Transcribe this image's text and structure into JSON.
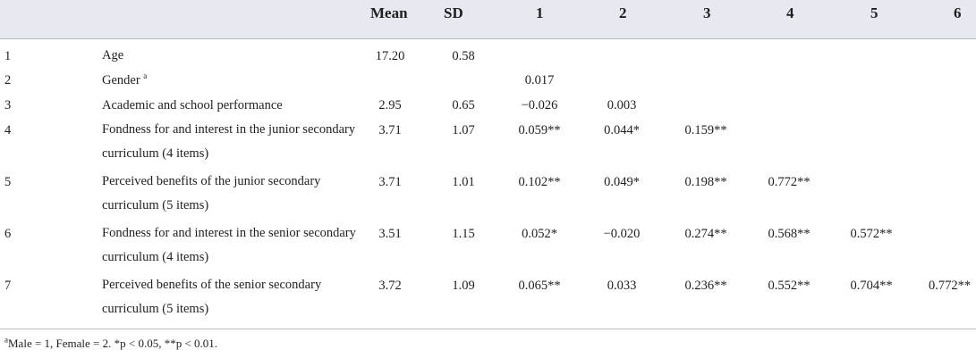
{
  "header": {
    "mean": "Mean",
    "sd": "SD",
    "c1": "1",
    "c2": "2",
    "c3": "3",
    "c4": "4",
    "c5": "5",
    "c6": "6"
  },
  "rows": [
    {
      "idx": "1",
      "label": "Age",
      "mean": "17.20",
      "sd": "0.58",
      "c1": "",
      "c2": "",
      "c3": "",
      "c4": "",
      "c5": "",
      "c6": ""
    },
    {
      "idx": "2",
      "label": "Gender",
      "label_sup": "a",
      "mean": "",
      "sd": "",
      "c1": "0.017",
      "c2": "",
      "c3": "",
      "c4": "",
      "c5": "",
      "c6": ""
    },
    {
      "idx": "3",
      "label": "Academic and school performance",
      "mean": "2.95",
      "sd": "0.65",
      "c1": "−0.026",
      "c2": "0.003",
      "c3": "",
      "c4": "",
      "c5": "",
      "c6": ""
    },
    {
      "idx": "4",
      "label": "Fondness for and interest in the junior secondary curriculum (4 items)",
      "mean": "3.71",
      "sd": "1.07",
      "c1": "0.059**",
      "c2": "0.044*",
      "c3": "0.159**",
      "c4": "",
      "c5": "",
      "c6": ""
    },
    {
      "idx": "5",
      "label": "Perceived benefits of the junior secondary curriculum (5 items)",
      "mean": "3.71",
      "sd": "1.01",
      "c1": "0.102**",
      "c2": "0.049*",
      "c3": "0.198**",
      "c4": "0.772**",
      "c5": "",
      "c6": ""
    },
    {
      "idx": "6",
      "label": "Fondness for and interest in the senior secondary curriculum (4 items)",
      "mean": "3.51",
      "sd": "1.15",
      "c1": "0.052*",
      "c2": "−0.020",
      "c3": "0.274**",
      "c4": "0.568**",
      "c5": "0.572**",
      "c6": ""
    },
    {
      "idx": "7",
      "label": "Perceived benefits of the senior secondary curriculum (5 items)",
      "mean": "3.72",
      "sd": "1.09",
      "c1": "0.065**",
      "c2": "0.033",
      "c3": "0.236**",
      "c4": "0.552**",
      "c5": "0.704**",
      "c6": "0.772**"
    }
  ],
  "footnote": {
    "sup": "a",
    "text": "Male = 1, Female = 2. *p < 0.05, **p < 0.01."
  }
}
